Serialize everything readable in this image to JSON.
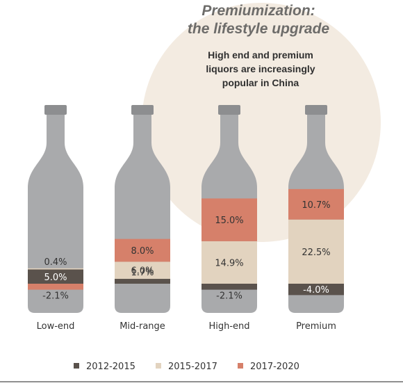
{
  "chart_data": {
    "type": "bar",
    "title": "Premiumization:",
    "title_line2": "the lifestyle upgrade",
    "subtitle": [
      "High end and premium",
      "liquors are increasingly",
      "popular in China"
    ],
    "categories": [
      "Low-end",
      "Mid-range",
      "High-end",
      "Premium"
    ],
    "series": [
      {
        "name": "2012-2015",
        "color": "#5a524c",
        "values": [
          5.0,
          1.7,
          -2.1,
          -4.0
        ],
        "labels": [
          "5.0%",
          "1.7%",
          "-2.1%",
          "-4.0%"
        ]
      },
      {
        "name": "2015-2017",
        "color": "#e2d3bf",
        "values": [
          0.4,
          6.0,
          14.9,
          22.5
        ],
        "labels": [
          "0.4%",
          "6.0%",
          "14.9%",
          "22.5%"
        ]
      },
      {
        "name": "2017-2020",
        "color": "#d6806a",
        "values": [
          -2.1,
          8.0,
          15.0,
          10.7
        ],
        "labels": [
          "-2.1%",
          "8.0%",
          "15.0%",
          "10.7%"
        ]
      }
    ],
    "legend_position": "bottom",
    "grid": false,
    "bottle_color": "#a9aaac",
    "circle_color": "#f3ebe1"
  }
}
